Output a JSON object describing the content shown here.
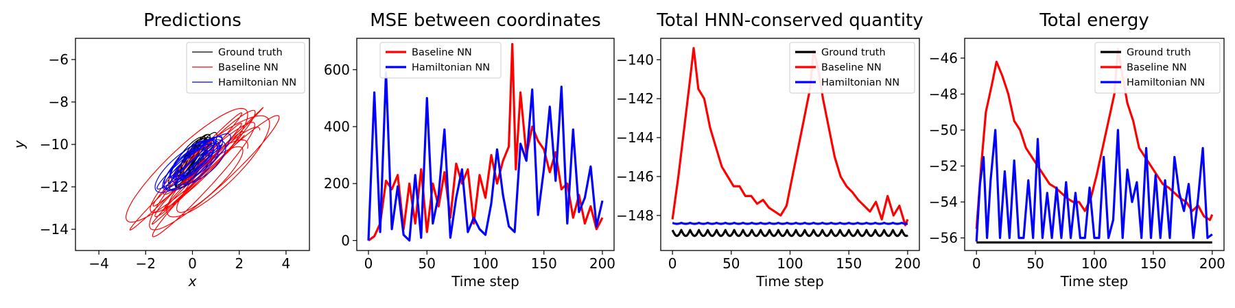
{
  "chart_data": [
    {
      "type": "line",
      "title": "Predictions",
      "xlabel": "x",
      "ylabel": "y",
      "xlim": [
        -5,
        5
      ],
      "ylim": [
        -15,
        -5
      ],
      "xticks": [
        -4,
        -2,
        0,
        2,
        4
      ],
      "yticks": [
        -14,
        -12,
        -10,
        -8,
        -6
      ],
      "legend": "top-right",
      "series": [
        {
          "name": "Ground truth",
          "color": "#000000",
          "kind": "trajectory",
          "cx": 0.0,
          "cy": -10.8,
          "ax": 0.85,
          "ay": 1.3,
          "vx": 0.05,
          "vy": 0.02
        },
        {
          "name": "Baseline NN",
          "color": "#ff0000",
          "kind": "trajectory",
          "cx": 0.4,
          "cy": -11.2,
          "ax": 2.6,
          "ay": 1.7,
          "vx": 0.18,
          "vy": -0.15
        },
        {
          "name": "Hamiltonian NN",
          "color": "#0000ff",
          "kind": "trajectory",
          "cx": 0.0,
          "cy": -10.9,
          "ax": 1.4,
          "ay": 1.3,
          "vx": 0.06,
          "vy": 0.03
        }
      ]
    },
    {
      "type": "line",
      "title": "MSE between coordinates",
      "xlabel": "Time step",
      "ylabel": "",
      "xlim": [
        -10,
        210
      ],
      "ylim": [
        -35,
        710
      ],
      "xticks": [
        0,
        50,
        100,
        150,
        200
      ],
      "yticks": [
        0,
        200,
        400,
        600
      ],
      "legend": "top-left",
      "series": [
        {
          "name": "Baseline NN",
          "color": "#ff0000",
          "x": [
            0,
            5,
            10,
            15,
            20,
            25,
            30,
            35,
            40,
            45,
            50,
            55,
            60,
            65,
            70,
            75,
            80,
            85,
            90,
            95,
            100,
            105,
            110,
            115,
            120,
            123,
            126,
            130,
            135,
            140,
            145,
            150,
            155,
            160,
            165,
            170,
            175,
            180,
            185,
            190,
            195,
            200
          ],
          "y": [
            0,
            15,
            60,
            210,
            180,
            230,
            40,
            200,
            60,
            250,
            30,
            200,
            120,
            240,
            80,
            270,
            200,
            250,
            60,
            230,
            150,
            300,
            200,
            280,
            330,
            690,
            250,
            520,
            300,
            400,
            350,
            320,
            240,
            310,
            180,
            200,
            80,
            160,
            60,
            120,
            40,
            80
          ]
        },
        {
          "name": "Hamiltonian NN",
          "color": "#0000ff",
          "x": [
            0,
            5,
            10,
            15,
            20,
            25,
            30,
            35,
            40,
            45,
            50,
            55,
            60,
            65,
            70,
            75,
            80,
            85,
            90,
            95,
            100,
            105,
            110,
            115,
            120,
            125,
            130,
            135,
            140,
            145,
            150,
            155,
            160,
            165,
            170,
            175,
            180,
            185,
            190,
            195,
            200
          ],
          "y": [
            0,
            520,
            30,
            590,
            40,
            190,
            20,
            0,
            230,
            10,
            500,
            60,
            160,
            390,
            10,
            150,
            250,
            30,
            80,
            40,
            20,
            130,
            320,
            160,
            50,
            30,
            340,
            280,
            530,
            90,
            250,
            470,
            210,
            540,
            60,
            390,
            100,
            150,
            260,
            50,
            140
          ]
        }
      ]
    },
    {
      "type": "line",
      "title": "Total HNN-conserved quantity",
      "xlabel": "Time step",
      "ylabel": "",
      "xlim": [
        -10,
        210
      ],
      "ylim": [
        -149.8,
        -138.9
      ],
      "xticks": [
        0,
        50,
        100,
        150,
        200
      ],
      "yticks": [
        -148,
        -146,
        -144,
        -142,
        -140
      ],
      "legend": "top-right",
      "series": [
        {
          "name": "Ground truth",
          "color": "#000000",
          "kind": "oscillation",
          "base": -148.75,
          "amplitude": 0.3,
          "period": 7.5
        },
        {
          "name": "Baseline NN",
          "color": "#ff0000",
          "x": [
            0,
            5,
            10,
            15,
            18,
            22,
            27,
            32,
            37,
            42,
            47,
            52,
            57,
            62,
            67,
            72,
            77,
            82,
            87,
            92,
            97,
            102,
            107,
            112,
            117,
            120,
            124,
            128,
            133,
            138,
            143,
            148,
            153,
            158,
            163,
            168,
            173,
            178,
            183,
            188,
            193,
            198,
            200
          ],
          "y": [
            -148.2,
            -146,
            -143.5,
            -141,
            -139.4,
            -141.5,
            -142,
            -143.5,
            -144.5,
            -145.5,
            -146,
            -146.5,
            -146.5,
            -147,
            -147,
            -147.4,
            -147.2,
            -147.6,
            -147.8,
            -148,
            -147.5,
            -146,
            -144.5,
            -143,
            -141.5,
            -139.5,
            -140.5,
            -142,
            -143.5,
            -145,
            -146,
            -146.5,
            -146.8,
            -147.2,
            -147.5,
            -147.8,
            -147.3,
            -148.2,
            -147,
            -148,
            -147.5,
            -148.5,
            -148.2
          ]
        },
        {
          "name": "Hamiltonian NN",
          "color": "#0000ff",
          "kind": "oscillation",
          "base": -148.38,
          "amplitude": 0.05,
          "period": 7.5
        }
      ]
    },
    {
      "type": "line",
      "title": "Total energy",
      "xlabel": "Time step",
      "ylabel": "",
      "xlim": [
        -10,
        210
      ],
      "ylim": [
        -56.7,
        -44.9
      ],
      "xticks": [
        0,
        50,
        100,
        150,
        200
      ],
      "yticks": [
        -56,
        -54,
        -52,
        -50,
        -48,
        -46
      ],
      "legend": "top-right",
      "series": [
        {
          "name": "Ground truth",
          "color": "#000000",
          "kind": "constant",
          "value": -56.25
        },
        {
          "name": "Baseline NN",
          "color": "#ff0000",
          "x": [
            0,
            4,
            8,
            13,
            17,
            22,
            27,
            32,
            37,
            42,
            47,
            52,
            57,
            62,
            67,
            72,
            77,
            82,
            87,
            92,
            97,
            102,
            107,
            112,
            117,
            120,
            124,
            128,
            133,
            138,
            143,
            148,
            153,
            158,
            163,
            168,
            173,
            178,
            183,
            188,
            193,
            198,
            200
          ],
          "y": [
            -55.5,
            -52,
            -49,
            -47.5,
            -46.2,
            -47,
            -48,
            -49.5,
            -50,
            -51,
            -51.5,
            -52,
            -52.5,
            -53,
            -53.2,
            -53.5,
            -53.8,
            -54,
            -54,
            -54.5,
            -53.8,
            -52.5,
            -51,
            -49.5,
            -48,
            -45.5,
            -47,
            -48.5,
            -49.5,
            -51,
            -51.5,
            -52,
            -52.5,
            -53,
            -53.2,
            -53.5,
            -53.8,
            -54,
            -54.5,
            -54.2,
            -54.8,
            -55,
            -54.7
          ]
        },
        {
          "name": "Hamiltonian NN",
          "color": "#0000ff",
          "x": [
            0,
            3,
            6,
            9,
            12,
            16,
            20,
            24,
            28,
            32,
            36,
            40,
            44,
            48,
            52,
            56,
            60,
            64,
            68,
            72,
            76,
            80,
            84,
            88,
            92,
            96,
            100,
            104,
            108,
            112,
            116,
            120,
            124,
            128,
            132,
            136,
            140,
            144,
            148,
            152,
            156,
            160,
            164,
            168,
            172,
            176,
            180,
            184,
            188,
            192,
            196,
            200
          ],
          "y": [
            -56.2,
            -53,
            -51.5,
            -56,
            -52.8,
            -50,
            -56,
            -52.3,
            -56,
            -51.7,
            -56,
            -56,
            -52.8,
            -56,
            -50.5,
            -56,
            -53.5,
            -56,
            -53.2,
            -56,
            -52.9,
            -56,
            -53.5,
            -56,
            -56,
            -53.2,
            -56,
            -56,
            -51.5,
            -56,
            -55,
            -50,
            -56,
            -52.2,
            -54,
            -52.9,
            -56,
            -51,
            -56,
            -52.5,
            -56,
            -52.8,
            -56,
            -51.5,
            -53.5,
            -54.5,
            -53,
            -56,
            -53.8,
            -51,
            -56,
            -55.8
          ]
        }
      ]
    }
  ]
}
